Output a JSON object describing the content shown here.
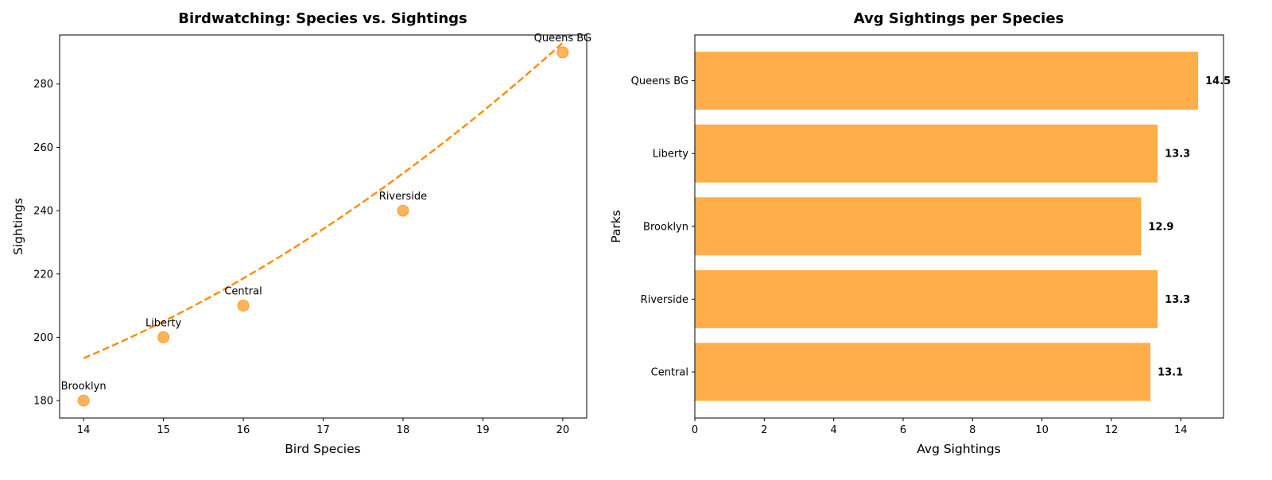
{
  "chart_data": [
    {
      "type": "scatter",
      "title": "Birdwatching: Species vs. Sightings",
      "xlabel": "Bird Species",
      "ylabel": "Sightings",
      "xlim": [
        13.7,
        20.3
      ],
      "ylim": [
        174.5,
        295.5
      ],
      "xticks": [
        14,
        15,
        16,
        17,
        18,
        19,
        20
      ],
      "yticks": [
        180,
        200,
        220,
        240,
        260,
        280
      ],
      "grid": false,
      "color": "#ff9f2e",
      "trend_color": "#ff8c00",
      "points": [
        {
          "label": "Brooklyn",
          "x": 14,
          "y": 180
        },
        {
          "label": "Liberty",
          "x": 15,
          "y": 200
        },
        {
          "label": "Central",
          "x": 16,
          "y": 210
        },
        {
          "label": "Riverside",
          "x": 18,
          "y": 240
        },
        {
          "label": "Queens BG",
          "x": 20,
          "y": 290
        }
      ],
      "trend": {
        "type": "quadratic",
        "style": "dashed",
        "coefficients": [
          1.0,
          -17.4,
          241.0
        ]
      }
    },
    {
      "type": "bar",
      "orientation": "horizontal",
      "title": "Avg Sightings per Species",
      "xlabel": "Avg Sightings",
      "ylabel": "Parks",
      "xlim": [
        0,
        15.23
      ],
      "xticks": [
        0,
        2,
        4,
        6,
        8,
        10,
        12,
        14
      ],
      "grid": false,
      "color": "#ffae4a",
      "categories": [
        "Central",
        "Riverside",
        "Brooklyn",
        "Liberty",
        "Queens BG"
      ],
      "values": [
        13.125,
        13.333,
        12.857,
        13.333,
        14.5
      ],
      "value_labels": [
        "13.1",
        "13.3",
        "12.9",
        "13.3",
        "14.5"
      ]
    }
  ]
}
